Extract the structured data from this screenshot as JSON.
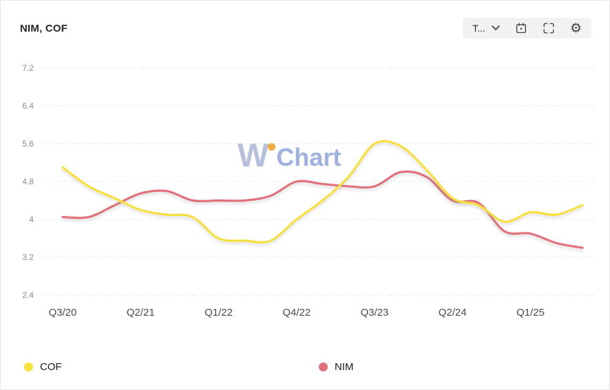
{
  "header": {
    "title": "NIM, COF"
  },
  "toolbar": {
    "period_label": "T..."
  },
  "watermark": {
    "part1": "W",
    "part2": "Chart",
    "dot_color": "#f2a93b"
  },
  "legend": [
    {
      "label": "COF",
      "color": "#f7df3c"
    },
    {
      "label": "NIM",
      "color": "#e0707a"
    }
  ],
  "chart_data": {
    "type": "line",
    "title": "NIM, COF",
    "x": [
      "Q3/20",
      "Q4/20",
      "Q1/21",
      "Q2/21",
      "Q3/21",
      "Q4/21",
      "Q1/22",
      "Q2/22",
      "Q3/22",
      "Q4/22",
      "Q1/23",
      "Q2/23",
      "Q3/23",
      "Q4/23",
      "Q1/24",
      "Q2/24",
      "Q3/24",
      "Q4/24",
      "Q1/25",
      "Q2/25",
      "Q3/25"
    ],
    "x_tick_labels": [
      "Q3/20",
      "Q2/21",
      "Q1/22",
      "Q4/22",
      "Q3/23",
      "Q2/24",
      "Q1/25"
    ],
    "x_tick_indices": [
      0,
      3,
      6,
      9,
      12,
      15,
      18
    ],
    "y_ticks": [
      7.2,
      6.4,
      5.6,
      4.8,
      4,
      3.2,
      2.4
    ],
    "ylim": [
      2.4,
      7.2
    ],
    "grid": "dashed-horizontal",
    "legend_position": "bottom",
    "series": [
      {
        "name": "COF",
        "color": "#f7df3c",
        "values": [
          5.1,
          4.7,
          4.45,
          4.2,
          4.1,
          4.05,
          3.6,
          3.55,
          3.55,
          4.0,
          4.4,
          4.9,
          5.6,
          5.55,
          5.05,
          4.45,
          4.3,
          3.95,
          4.15,
          4.1,
          4.3
        ]
      },
      {
        "name": "NIM",
        "color": "#e0707a",
        "values": [
          4.05,
          4.05,
          4.3,
          4.55,
          4.6,
          4.4,
          4.4,
          4.4,
          4.5,
          4.8,
          4.75,
          4.7,
          4.7,
          5.0,
          4.9,
          4.4,
          4.35,
          3.75,
          3.7,
          3.5,
          3.4
        ]
      }
    ]
  }
}
